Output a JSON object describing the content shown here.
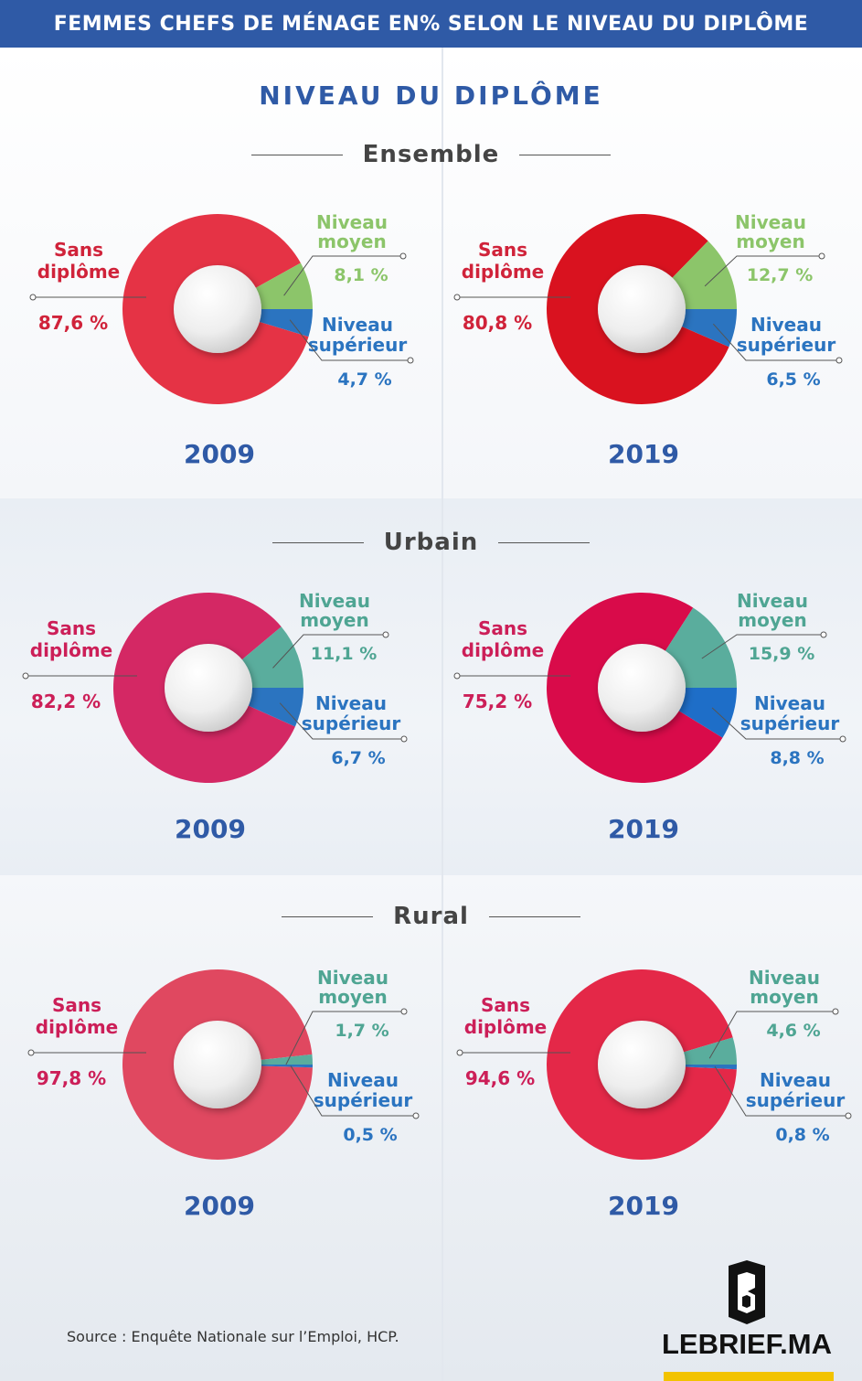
{
  "header": {
    "title": "FEMMES CHEFS DE MÉNAGE EN% SELON LE NIVEAU DU DIPLÔME"
  },
  "main_title": "NIVEAU DU DIPLÔME",
  "sections": [
    {
      "title": "Ensemble"
    },
    {
      "title": "Urbain"
    },
    {
      "title": "Rural"
    }
  ],
  "source": "Source :  Enquête Nationale sur l’Emploi, HCP.",
  "logo": {
    "text": "LEBRIEF.MA"
  },
  "colors": {
    "brand_blue": "#2f5aa6",
    "title_text": "#444444",
    "label_moyen": "#8cc56a",
    "label_superieur": "#2b74c0"
  },
  "chart_data": [
    {
      "type": "pie",
      "section": "Ensemble",
      "year": "2009",
      "categories": [
        "Sans diplôme",
        "Niveau moyen",
        "Niveau supérieur"
      ],
      "values": [
        87.6,
        8.1,
        4.7
      ],
      "labels": [
        "87,6 %",
        "8,1 %",
        "4,7 %"
      ],
      "colors": [
        "#e53345",
        "#8cc56a",
        "#2b74c0"
      ],
      "label_color_main": "#d0233a",
      "label_color_moyen": "#8cc56a"
    },
    {
      "type": "pie",
      "section": "Ensemble",
      "year": "2019",
      "categories": [
        "Sans diplôme",
        "Niveau moyen",
        "Niveau supérieur"
      ],
      "values": [
        80.8,
        12.7,
        6.5
      ],
      "labels": [
        "80,8 %",
        "12,7 %",
        "6,5 %"
      ],
      "colors": [
        "#d9121f",
        "#8cc56a",
        "#2b74c0"
      ],
      "label_color_main": "#d0233a",
      "label_color_moyen": "#8cc56a"
    },
    {
      "type": "pie",
      "section": "Urbain",
      "year": "2009",
      "categories": [
        "Sans diplôme",
        "Niveau moyen",
        "Niveau supérieur"
      ],
      "values": [
        82.2,
        11.1,
        6.7
      ],
      "labels": [
        "82,2 %",
        "11,1 %",
        "6,7 %"
      ],
      "colors": [
        "#d42864",
        "#5aad9d",
        "#2b74c0"
      ],
      "label_color_main": "#cc1f58",
      "label_color_moyen": "#4fa593"
    },
    {
      "type": "pie",
      "section": "Urbain",
      "year": "2019",
      "categories": [
        "Sans diplôme",
        "Niveau moyen",
        "Niveau supérieur"
      ],
      "values": [
        75.2,
        15.9,
        8.8
      ],
      "labels": [
        "75,2 %",
        "15,9 %",
        "8,8 %"
      ],
      "colors": [
        "#d90b4a",
        "#5aad9d",
        "#1e6ec8"
      ],
      "label_color_main": "#cc1f58",
      "label_color_moyen": "#4fa593"
    },
    {
      "type": "pie",
      "section": "Rural",
      "year": "2009",
      "categories": [
        "Sans diplôme",
        "Niveau moyen",
        "Niveau supérieur"
      ],
      "values": [
        97.8,
        1.7,
        0.5
      ],
      "labels": [
        "97,8 %",
        "1,7 %",
        "0,5 %"
      ],
      "colors": [
        "#e04860",
        "#5aad9d",
        "#2b74c0"
      ],
      "label_color_main": "#cc1f58",
      "label_color_moyen": "#4fa593"
    },
    {
      "type": "pie",
      "section": "Rural",
      "year": "2019",
      "categories": [
        "Sans diplôme",
        "Niveau moyen",
        "Niveau supérieur"
      ],
      "values": [
        94.6,
        4.6,
        0.8
      ],
      "labels": [
        "94,6 %",
        "4,6 %",
        "0,8 %"
      ],
      "colors": [
        "#e42848",
        "#5aad9d",
        "#2b74c0"
      ],
      "label_color_main": "#cc1f58",
      "label_color_moyen": "#4fa593"
    }
  ]
}
